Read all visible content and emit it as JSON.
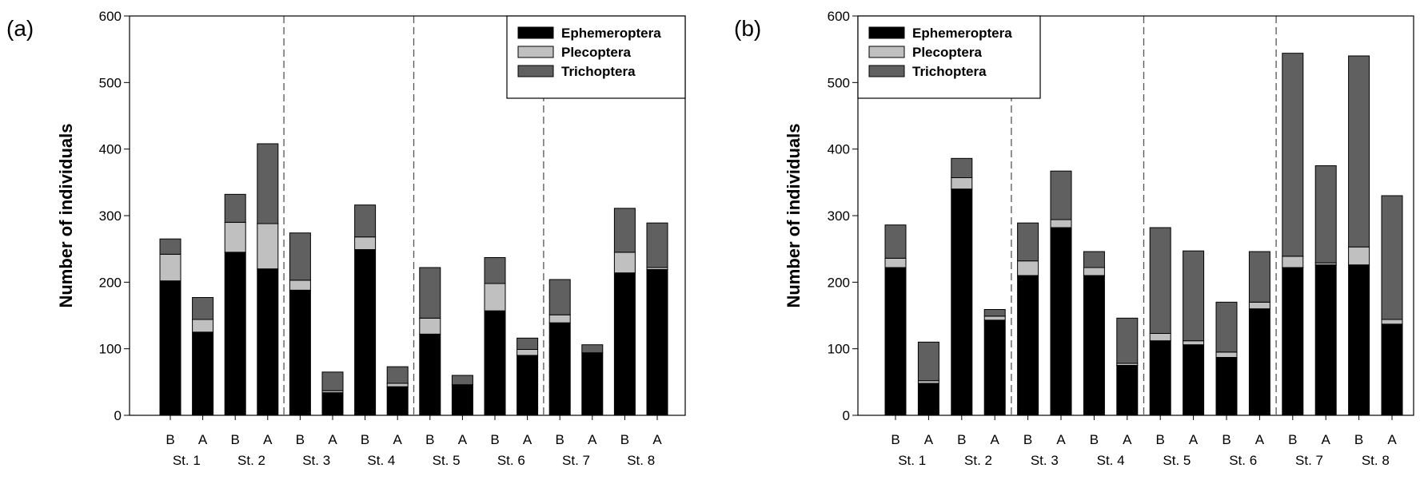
{
  "colors": {
    "Ephemeroptera": "#000000",
    "Plecoptera": "#c0c0c0",
    "Trichoptera": "#606060"
  },
  "chart_data": [
    {
      "type": "bar",
      "stacked": true,
      "panel_label": "(a)",
      "ylabel": "Number of individuals",
      "ylim": [
        0,
        600
      ],
      "yticks": [
        "0",
        "100",
        "200",
        "300",
        "400",
        "500",
        "600"
      ],
      "categories": [
        "B",
        "A",
        "B",
        "A",
        "B",
        "A",
        "B",
        "A",
        "B",
        "A",
        "B",
        "A",
        "B",
        "A",
        "B",
        "A"
      ],
      "stations": [
        "St. 1",
        "St. 2",
        "St. 3",
        "St. 4",
        "St. 5",
        "St. 6",
        "St. 7",
        "St. 8"
      ],
      "dividers_after_station": [
        2,
        4,
        6
      ],
      "legend_position": "top-right",
      "series": [
        {
          "name": "Ephemeroptera",
          "values": [
            202,
            125,
            245,
            220,
            188,
            34,
            249,
            43,
            122,
            46,
            157,
            90,
            139,
            94,
            214,
            219
          ]
        },
        {
          "name": "Plecoptera",
          "values": [
            40,
            19,
            45,
            68,
            15,
            3,
            19,
            5,
            24,
            0,
            41,
            9,
            12,
            0,
            31,
            3
          ]
        },
        {
          "name": "Trichoptera",
          "values": [
            23,
            33,
            42,
            120,
            71,
            28,
            48,
            25,
            76,
            14,
            39,
            17,
            53,
            12,
            66,
            67
          ]
        }
      ]
    },
    {
      "type": "bar",
      "stacked": true,
      "panel_label": "(b)",
      "ylabel": "Number of individuals",
      "ylim": [
        0,
        600
      ],
      "yticks": [
        "0",
        "100",
        "200",
        "300",
        "400",
        "500",
        "600"
      ],
      "categories": [
        "B",
        "A",
        "B",
        "A",
        "B",
        "A",
        "B",
        "A",
        "B",
        "A",
        "B",
        "A",
        "B",
        "A",
        "B",
        "A"
      ],
      "stations": [
        "St. 1",
        "St. 2",
        "St. 3",
        "St. 4",
        "St. 5",
        "St. 6",
        "St. 7",
        "St. 8"
      ],
      "dividers_after_station": [
        2,
        4,
        6
      ],
      "legend_position": "top-left",
      "series": [
        {
          "name": "Ephemeroptera",
          "values": [
            222,
            48,
            340,
            143,
            210,
            282,
            210,
            75,
            112,
            106,
            87,
            160,
            222,
            226,
            226,
            137
          ]
        },
        {
          "name": "Plecoptera",
          "values": [
            14,
            4,
            17,
            6,
            22,
            12,
            12,
            3,
            11,
            6,
            8,
            10,
            17,
            3,
            27,
            7
          ]
        },
        {
          "name": "Trichoptera",
          "values": [
            50,
            58,
            29,
            10,
            57,
            73,
            24,
            68,
            159,
            135,
            75,
            76,
            305,
            146,
            287,
            186
          ]
        }
      ]
    }
  ]
}
